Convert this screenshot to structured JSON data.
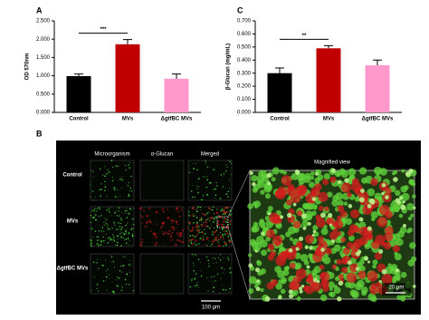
{
  "chart_data": [
    {
      "type": "bar",
      "panel": "A",
      "ylabel": "OD 570nm",
      "categories": [
        "Control",
        "MVs",
        "ΔgtfBC MVs"
      ],
      "values": [
        0.99,
        1.86,
        0.92
      ],
      "errors": [
        0.06,
        0.13,
        0.13
      ],
      "colors": [
        "#000000",
        "#c00000",
        "#ff99cc"
      ],
      "ylim": [
        0,
        2.5
      ],
      "yticks": [
        {
          "value": 0,
          "label": "0.000"
        },
        {
          "value": 0.5,
          "label": "0.500"
        },
        {
          "value": 1,
          "label": "1.000"
        },
        {
          "value": 1.5,
          "label": "1.500"
        },
        {
          "value": 2,
          "label": "2.000"
        },
        {
          "value": 2.5,
          "label": "2.500"
        }
      ],
      "significance": "***"
    },
    {
      "type": "bar",
      "panel": "C",
      "ylabel": "β-Glucan (mg/mL)",
      "categories": [
        "Control",
        "MVs",
        "ΔgtfBC MVs"
      ],
      "values": [
        0.3,
        0.49,
        0.36
      ],
      "errors": [
        0.04,
        0.02,
        0.04
      ],
      "colors": [
        "#000000",
        "#c00000",
        "#ff99cc"
      ],
      "ylim": [
        0,
        0.7
      ],
      "yticks": [
        {
          "value": 0,
          "label": "0.000"
        },
        {
          "value": 0.1,
          "label": "0.100"
        },
        {
          "value": 0.2,
          "label": "0.200"
        },
        {
          "value": 0.3,
          "label": "0.300"
        },
        {
          "value": 0.4,
          "label": "0.400"
        },
        {
          "value": 0.5,
          "label": "0.500"
        },
        {
          "value": 0.6,
          "label": "0.600"
        },
        {
          "value": 0.7,
          "label": "0.700"
        }
      ],
      "significance": "**"
    }
  ],
  "panel_b": {
    "label": "B",
    "columns": [
      "Microorganism",
      "α-Glucan",
      "Merged"
    ],
    "rows": [
      "Control",
      "MVs",
      "ΔgtfBC MVs"
    ],
    "magnified_title": "Magnified view",
    "scale_bar": "100 μm",
    "magnified_scale_bar": "20 μm"
  }
}
